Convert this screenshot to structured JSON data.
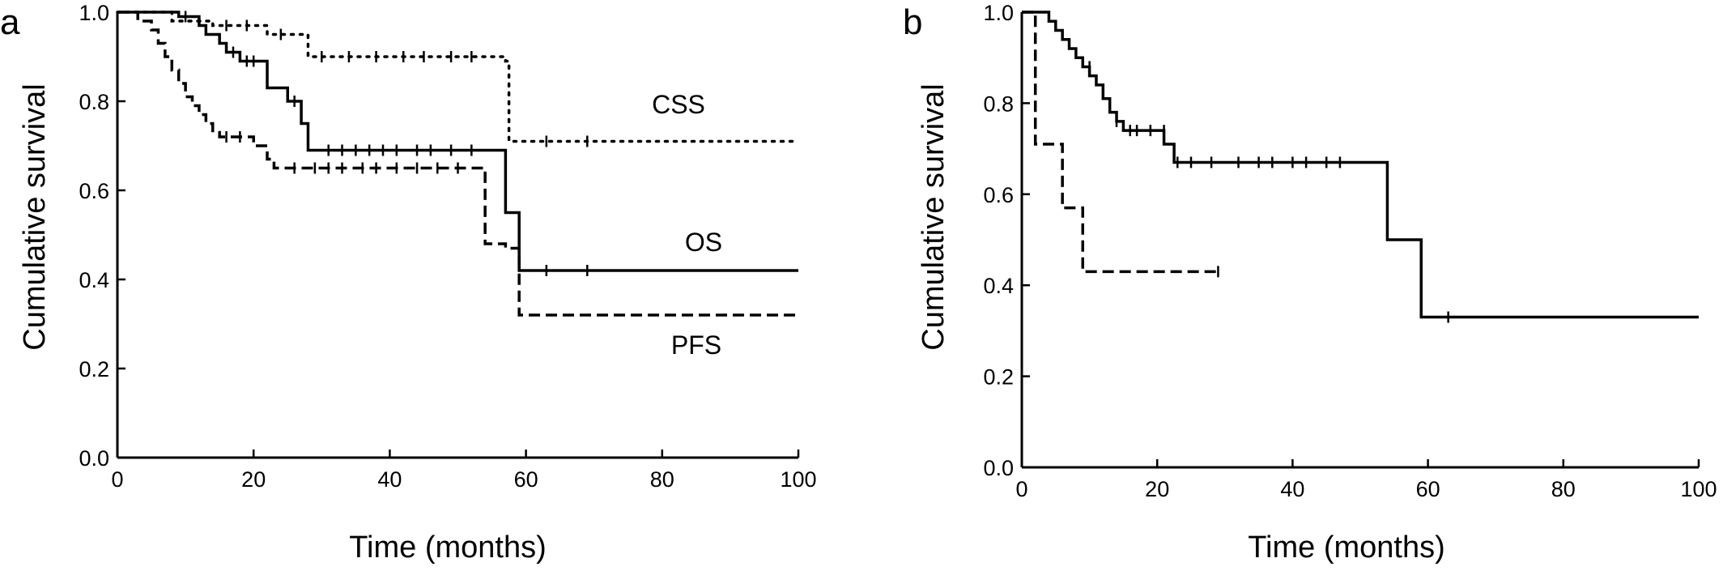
{
  "chart_data": [
    {
      "type": "line",
      "panel": "a",
      "xlabel": "Time (months)",
      "ylabel": "Cumulative survival",
      "xlim": [
        0,
        100
      ],
      "ylim": [
        0,
        1.0
      ],
      "xticks": [
        "0",
        "20",
        "40",
        "60",
        "80",
        "100"
      ],
      "yticks": [
        "0.0",
        "0.2",
        "0.4",
        "0.6",
        "0.8",
        "1.0"
      ],
      "grid": false,
      "series": [
        {
          "name": "CSS",
          "style": "dotted",
          "steps": [
            [
              0,
              1.0
            ],
            [
              8,
              0.98
            ],
            [
              14,
              0.97
            ],
            [
              22,
              0.95
            ],
            [
              28,
              0.9
            ],
            [
              57,
              0.89
            ],
            [
              57.5,
              0.71
            ],
            [
              100,
              0.71
            ]
          ],
          "censored": [
            [
              12,
              0.98
            ],
            [
              16,
              0.97
            ],
            [
              19,
              0.97
            ],
            [
              24,
              0.95
            ],
            [
              30,
              0.9
            ],
            [
              34,
              0.9
            ],
            [
              38,
              0.9
            ],
            [
              42,
              0.9
            ],
            [
              45,
              0.9
            ],
            [
              49,
              0.9
            ],
            [
              52,
              0.9
            ],
            [
              63,
              0.71
            ],
            [
              69,
              0.71
            ]
          ]
        },
        {
          "name": "OS",
          "style": "solid",
          "steps": [
            [
              0,
              1.0
            ],
            [
              9,
              0.99
            ],
            [
              12,
              0.97
            ],
            [
              13,
              0.95
            ],
            [
              15,
              0.93
            ],
            [
              16,
              0.91
            ],
            [
              18,
              0.89
            ],
            [
              22,
              0.83
            ],
            [
              25,
              0.8
            ],
            [
              27,
              0.75
            ],
            [
              28,
              0.69
            ],
            [
              57,
              0.55
            ],
            [
              59,
              0.42
            ],
            [
              100,
              0.42
            ]
          ],
          "censored": [
            [
              10,
              0.99
            ],
            [
              17,
              0.91
            ],
            [
              19,
              0.89
            ],
            [
              20,
              0.89
            ],
            [
              26,
              0.8
            ],
            [
              31,
              0.69
            ],
            [
              33,
              0.69
            ],
            [
              35,
              0.69
            ],
            [
              37,
              0.69
            ],
            [
              39,
              0.69
            ],
            [
              41,
              0.69
            ],
            [
              44,
              0.69
            ],
            [
              46,
              0.69
            ],
            [
              49,
              0.69
            ],
            [
              52,
              0.69
            ],
            [
              63,
              0.42
            ],
            [
              69,
              0.42
            ]
          ]
        },
        {
          "name": "PFS",
          "style": "dashed",
          "steps": [
            [
              0,
              1.0
            ],
            [
              3,
              0.98
            ],
            [
              5,
              0.96
            ],
            [
              6,
              0.93
            ],
            [
              7,
              0.9
            ],
            [
              8,
              0.87
            ],
            [
              9,
              0.84
            ],
            [
              10,
              0.81
            ],
            [
              11,
              0.79
            ],
            [
              12,
              0.77
            ],
            [
              13,
              0.75
            ],
            [
              14,
              0.73
            ],
            [
              15,
              0.72
            ],
            [
              20,
              0.7
            ],
            [
              22,
              0.67
            ],
            [
              23,
              0.65
            ],
            [
              54,
              0.48
            ],
            [
              57,
              0.47
            ],
            [
              59,
              0.32
            ],
            [
              100,
              0.32
            ]
          ],
          "censored": [
            [
              16,
              0.72
            ],
            [
              18,
              0.72
            ],
            [
              26,
              0.65
            ],
            [
              29,
              0.65
            ],
            [
              31,
              0.65
            ],
            [
              33,
              0.65
            ],
            [
              36,
              0.65
            ],
            [
              38,
              0.65
            ],
            [
              41,
              0.65
            ],
            [
              44,
              0.65
            ],
            [
              47,
              0.65
            ],
            [
              50,
              0.65
            ]
          ]
        }
      ]
    },
    {
      "type": "line",
      "panel": "b",
      "xlabel": "Time (months)",
      "ylabel": "Cumulative survival",
      "xlim": [
        0,
        100
      ],
      "ylim": [
        0,
        1.0
      ],
      "xticks": [
        "0",
        "20",
        "40",
        "60",
        "80",
        "100"
      ],
      "yticks": [
        "0.0",
        "0.2",
        "0.4",
        "0.6",
        "0.8",
        "1.0"
      ],
      "grid": false,
      "series": [
        {
          "style": "solid",
          "steps": [
            [
              0,
              1.0
            ],
            [
              4,
              0.98
            ],
            [
              5,
              0.96
            ],
            [
              6,
              0.94
            ],
            [
              7,
              0.92
            ],
            [
              8,
              0.9
            ],
            [
              9,
              0.88
            ],
            [
              10,
              0.86
            ],
            [
              11,
              0.84
            ],
            [
              12,
              0.81
            ],
            [
              13,
              0.78
            ],
            [
              14,
              0.76
            ],
            [
              15,
              0.74
            ],
            [
              21,
              0.71
            ],
            [
              22.5,
              0.67
            ],
            [
              54,
              0.5
            ],
            [
              59,
              0.33
            ],
            [
              100,
              0.33
            ]
          ],
          "censored": [
            [
              10,
              0.88
            ],
            [
              14,
              0.76
            ],
            [
              16,
              0.74
            ],
            [
              17,
              0.74
            ],
            [
              19,
              0.74
            ],
            [
              21,
              0.74
            ],
            [
              23,
              0.67
            ],
            [
              25,
              0.67
            ],
            [
              28,
              0.67
            ],
            [
              32,
              0.67
            ],
            [
              35,
              0.67
            ],
            [
              37,
              0.67
            ],
            [
              40,
              0.67
            ],
            [
              42,
              0.67
            ],
            [
              45,
              0.67
            ],
            [
              47,
              0.67
            ],
            [
              63,
              0.33
            ]
          ]
        },
        {
          "style": "dashed",
          "steps": [
            [
              0,
              1.0
            ],
            [
              2,
              0.71
            ],
            [
              6,
              0.57
            ],
            [
              9,
              0.43
            ],
            [
              29,
              0.43
            ]
          ],
          "censored": [
            [
              29,
              0.43
            ]
          ]
        }
      ]
    }
  ],
  "annotations": {
    "panel_a_letter": "a",
    "panel_b_letter": "b",
    "css": "CSS",
    "os": "OS",
    "pfs": "PFS"
  }
}
